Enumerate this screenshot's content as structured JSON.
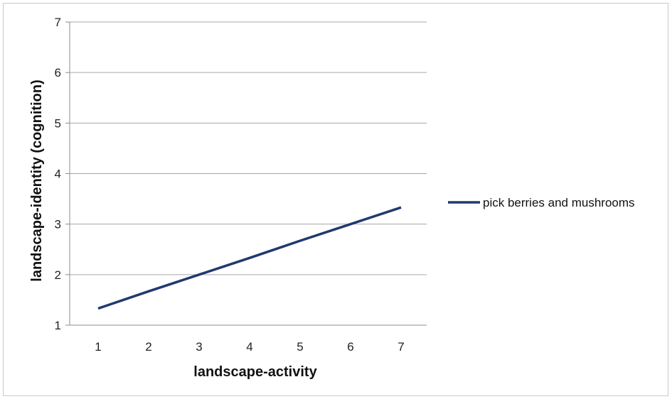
{
  "chart_data": {
    "type": "line",
    "x": [
      1,
      2,
      3,
      4,
      5,
      6,
      7
    ],
    "series": [
      {
        "name": "pick berries and mushrooms",
        "values": [
          1.33,
          1.67,
          2.0,
          2.33,
          2.67,
          3.0,
          3.33
        ],
        "color": "#1f3a6e"
      }
    ],
    "xlabel": "landscape-activity",
    "ylabel": "landscape-identity (cognition)",
    "x_ticks": [
      "1",
      "2",
      "3",
      "4",
      "5",
      "6",
      "7"
    ],
    "y_ticks": [
      "1",
      "2",
      "3",
      "4",
      "5",
      "6",
      "7"
    ],
    "xlim": [
      1,
      7
    ],
    "ylim": [
      1,
      7
    ],
    "grid": true,
    "legend_position": "right"
  }
}
